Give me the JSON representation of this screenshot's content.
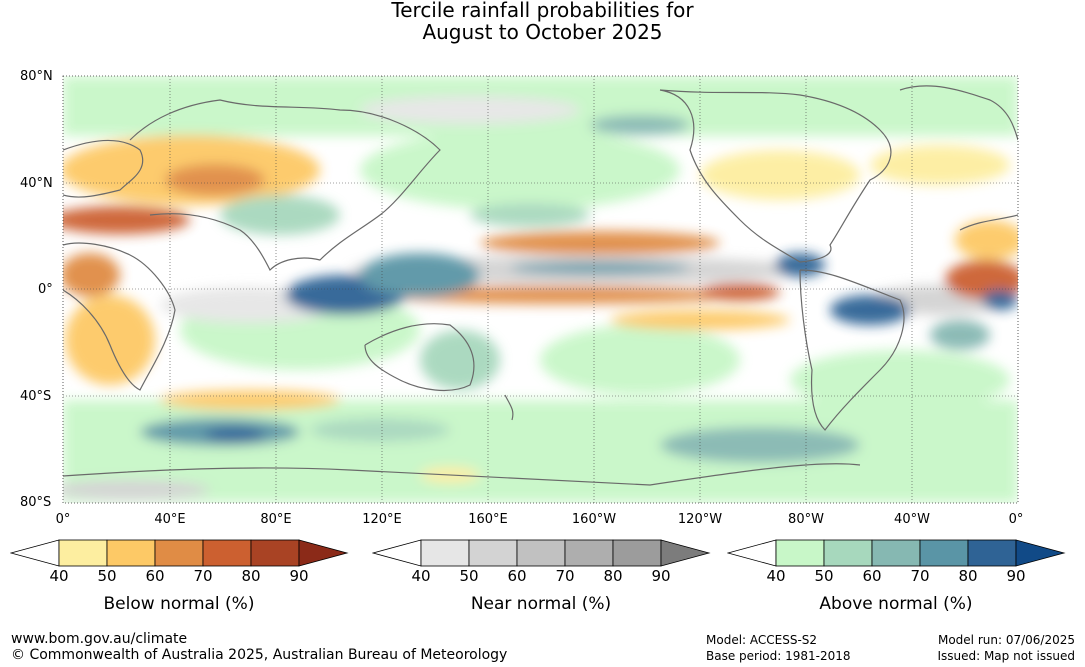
{
  "title_line1": "Tercile rainfall probabilities for",
  "title_line2": "August to October 2025",
  "lat_labels": [
    "80°N",
    "40°N",
    "0°",
    "40°S",
    "80°S"
  ],
  "lon_labels": [
    "0°",
    "40°E",
    "80°E",
    "120°E",
    "160°E",
    "160°W",
    "120°W",
    "80°W",
    "40°W",
    "0°"
  ],
  "legends": [
    {
      "title": "Below normal (%)",
      "ticks": [
        "40",
        "50",
        "60",
        "70",
        "80",
        "90"
      ],
      "colors": [
        "#ffffff",
        "#fdeea0",
        "#fdc966",
        "#e08c45",
        "#cc6030",
        "#a94324",
        "#8b2a18"
      ]
    },
    {
      "title": "Near normal (%)",
      "ticks": [
        "40",
        "50",
        "60",
        "70",
        "80",
        "90"
      ],
      "colors": [
        "#ffffff",
        "#e6e6e6",
        "#d3d3d3",
        "#c1c1c1",
        "#aeaeae",
        "#9c9c9c",
        "#7c7c7c"
      ]
    },
    {
      "title": "Above normal (%)",
      "ticks": [
        "40",
        "50",
        "60",
        "70",
        "80",
        "90"
      ],
      "colors": [
        "#ffffff",
        "#c8f7c8",
        "#a7d8bd",
        "#86b8b2",
        "#5a95a6",
        "#2f6395",
        "#114a87"
      ]
    }
  ],
  "footer": {
    "website": "www.bom.gov.au/climate",
    "copyright": "© Commonwealth of Australia 2025, Australian Bureau of Meteorology",
    "model": "Model: ACCESS-S2",
    "base_period": "Base period: 1981-2018",
    "model_run": "Model run: 07/06/2025",
    "issued": "Issued: Map not issued"
  }
}
